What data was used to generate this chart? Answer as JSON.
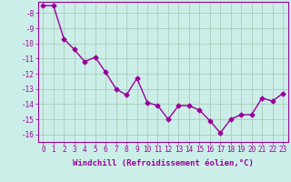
{
  "x": [
    0,
    1,
    2,
    3,
    4,
    5,
    6,
    7,
    8,
    9,
    10,
    11,
    12,
    13,
    14,
    15,
    16,
    17,
    18,
    19,
    20,
    21,
    22,
    23
  ],
  "y": [
    -7.5,
    -7.5,
    -9.7,
    -10.4,
    -11.2,
    -10.9,
    -11.9,
    -13.0,
    -13.4,
    -12.3,
    -13.9,
    -14.1,
    -15.0,
    -14.1,
    -14.1,
    -14.4,
    -15.1,
    -15.9,
    -15.0,
    -14.7,
    -14.7,
    -13.6,
    -13.8,
    -13.3
  ],
  "line_color": "#990099",
  "marker": "D",
  "marker_size": 2.5,
  "bg_color": "#cceee8",
  "grid_color": "#aaccbb",
  "xlabel": "Windchill (Refroidissement éolien,°C)",
  "ylim": [
    -16.5,
    -7.25
  ],
  "xlim": [
    -0.5,
    23.5
  ],
  "yticks": [
    -16,
    -15,
    -14,
    -13,
    -12,
    -11,
    -10,
    -9,
    -8
  ],
  "xticks": [
    0,
    1,
    2,
    3,
    4,
    5,
    6,
    7,
    8,
    9,
    10,
    11,
    12,
    13,
    14,
    15,
    16,
    17,
    18,
    19,
    20,
    21,
    22,
    23
  ],
  "xlabel_fontsize": 6.5,
  "tick_fontsize": 5.5,
  "line_width": 1.0
}
